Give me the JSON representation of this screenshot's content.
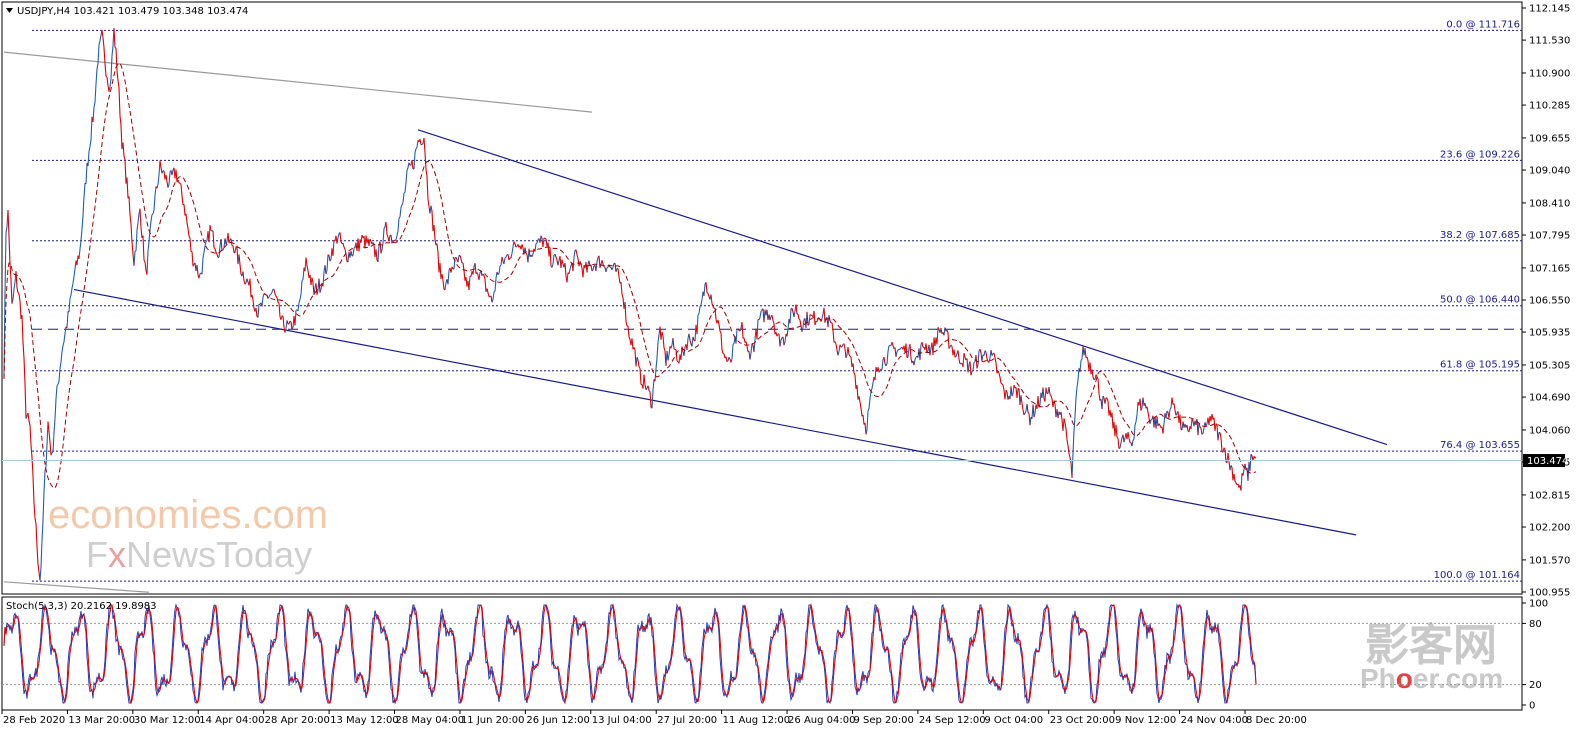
{
  "chart_data": {
    "type": "line",
    "symbol_header": "USDJPY,H4  103.421 103.479 103.348 103.474",
    "price_axis": {
      "ticks": [
        "112.145",
        "111.530",
        "110.900",
        "110.285",
        "109.655",
        "109.040",
        "108.410",
        "107.795",
        "107.165",
        "106.550",
        "105.935",
        "105.305",
        "104.690",
        "104.060",
        "103.445",
        "102.815",
        "102.200",
        "101.570",
        "100.955"
      ],
      "range": [
        100.955,
        112.145
      ],
      "current_price": "103.474",
      "current_value": 103.474
    },
    "x_labels": [
      "28 Feb 2020",
      "13 Mar 20:00",
      "30 Mar 12:00",
      "14 Apr 04:00",
      "28 Apr 20:00",
      "13 May 12:00",
      "28 May 04:00",
      "11 Jun 20:00",
      "26 Jun 12:00",
      "13 Jul 04:00",
      "27 Jul 20:00",
      "11 Aug 12:00",
      "26 Aug 04:00",
      "9 Sep 20:00",
      "24 Sep 12:00",
      "9 Oct 04:00",
      "23 Oct 20:00",
      "9 Nov 12:00",
      "24 Nov 04:00",
      "8 Dec 20:00"
    ],
    "fib_levels": [
      {
        "label": "0.0 @ 111.716",
        "value": 111.716
      },
      {
        "label": "23.6 @ 109.226",
        "value": 109.226
      },
      {
        "label": "38.2 @ 107.685",
        "value": 107.685
      },
      {
        "label": "50.0 @ 106.440",
        "value": 106.44
      },
      {
        "label": "61.8 @ 105.195",
        "value": 105.195
      },
      {
        "label": "76.4 @ 103.655",
        "value": 103.655
      },
      {
        "label": "100.0 @ 101.164",
        "value": 101.164
      }
    ],
    "dashed_level": 105.99,
    "price_anchors": [
      [
        0,
        105.2
      ],
      [
        2,
        107.9
      ],
      [
        4,
        108.2
      ],
      [
        6,
        107.3
      ],
      [
        8,
        106.4
      ],
      [
        12,
        107.0
      ],
      [
        18,
        106.2
      ],
      [
        22,
        104.4
      ],
      [
        26,
        104.1
      ],
      [
        30,
        102.7
      ],
      [
        34,
        101.6
      ],
      [
        36,
        101.2
      ],
      [
        38,
        101.8
      ],
      [
        40,
        102.8
      ],
      [
        44,
        104.2
      ],
      [
        48,
        103.5
      ],
      [
        52,
        104.6
      ],
      [
        58,
        105.6
      ],
      [
        64,
        106.2
      ],
      [
        70,
        107.0
      ],
      [
        76,
        107.5
      ],
      [
        82,
        108.9
      ],
      [
        86,
        109.6
      ],
      [
        90,
        110.2
      ],
      [
        94,
        111.2
      ],
      [
        98,
        111.6
      ],
      [
        102,
        111.0
      ],
      [
        106,
        110.6
      ],
      [
        110,
        111.7
      ],
      [
        114,
        110.8
      ],
      [
        118,
        109.6
      ],
      [
        124,
        108.6
      ],
      [
        130,
        107.3
      ],
      [
        136,
        108.3
      ],
      [
        142,
        107.0
      ],
      [
        148,
        108.1
      ],
      [
        156,
        109.1
      ],
      [
        164,
        108.8
      ],
      [
        172,
        109.0
      ],
      [
        180,
        108.4
      ],
      [
        188,
        107.4
      ],
      [
        196,
        107.0
      ],
      [
        206,
        107.9
      ],
      [
        214,
        107.5
      ],
      [
        222,
        107.7
      ],
      [
        230,
        107.6
      ],
      [
        238,
        107.1
      ],
      [
        246,
        106.8
      ],
      [
        254,
        106.3
      ],
      [
        262,
        106.6
      ],
      [
        270,
        106.7
      ],
      [
        278,
        106.1
      ],
      [
        286,
        106.0
      ],
      [
        294,
        106.3
      ],
      [
        302,
        107.3
      ],
      [
        310,
        106.7
      ],
      [
        318,
        106.9
      ],
      [
        326,
        107.4
      ],
      [
        334,
        107.8
      ],
      [
        342,
        107.4
      ],
      [
        350,
        107.5
      ],
      [
        358,
        107.7
      ],
      [
        366,
        107.6
      ],
      [
        374,
        107.4
      ],
      [
        382,
        107.9
      ],
      [
        390,
        107.7
      ],
      [
        398,
        108.3
      ],
      [
        404,
        109.0
      ],
      [
        410,
        109.2
      ],
      [
        414,
        109.6
      ],
      [
        420,
        109.7
      ],
      [
        424,
        108.6
      ],
      [
        430,
        107.9
      ],
      [
        436,
        107.1
      ],
      [
        442,
        106.8
      ],
      [
        448,
        107.2
      ],
      [
        456,
        107.3
      ],
      [
        464,
        106.8
      ],
      [
        472,
        107.2
      ],
      [
        480,
        106.9
      ],
      [
        488,
        106.5
      ],
      [
        494,
        107.1
      ],
      [
        500,
        107.3
      ],
      [
        508,
        107.5
      ],
      [
        516,
        107.7
      ],
      [
        524,
        107.4
      ],
      [
        532,
        107.6
      ],
      [
        540,
        107.7
      ],
      [
        548,
        107.3
      ],
      [
        556,
        107.3
      ],
      [
        564,
        107.0
      ],
      [
        572,
        107.4
      ],
      [
        580,
        107.1
      ],
      [
        588,
        107.2
      ],
      [
        596,
        107.3
      ],
      [
        604,
        107.2
      ],
      [
        612,
        107.1
      ],
      [
        618,
        106.8
      ],
      [
        624,
        106.0
      ],
      [
        630,
        105.6
      ],
      [
        636,
        105.1
      ],
      [
        642,
        104.9
      ],
      [
        648,
        104.6
      ],
      [
        652,
        105.3
      ],
      [
        656,
        106.0
      ],
      [
        662,
        105.4
      ],
      [
        668,
        105.7
      ],
      [
        676,
        105.4
      ],
      [
        684,
        105.8
      ],
      [
        690,
        105.8
      ],
      [
        696,
        106.3
      ],
      [
        702,
        106.9
      ],
      [
        708,
        106.6
      ],
      [
        714,
        106.1
      ],
      [
        720,
        105.5
      ],
      [
        726,
        105.3
      ],
      [
        732,
        105.8
      ],
      [
        738,
        106.0
      ],
      [
        744,
        105.5
      ],
      [
        750,
        105.7
      ],
      [
        756,
        106.2
      ],
      [
        762,
        106.3
      ],
      [
        768,
        106.3
      ],
      [
        774,
        105.8
      ],
      [
        780,
        105.8
      ],
      [
        786,
        106.2
      ],
      [
        792,
        106.4
      ],
      [
        798,
        106.1
      ],
      [
        804,
        106.2
      ],
      [
        810,
        106.2
      ],
      [
        818,
        106.3
      ],
      [
        826,
        106.1
      ],
      [
        834,
        105.6
      ],
      [
        842,
        105.6
      ],
      [
        850,
        105.2
      ],
      [
        856,
        104.6
      ],
      [
        862,
        104.1
      ],
      [
        868,
        104.8
      ],
      [
        874,
        105.3
      ],
      [
        880,
        105.4
      ],
      [
        888,
        105.6
      ],
      [
        896,
        105.6
      ],
      [
        904,
        105.6
      ],
      [
        912,
        105.4
      ],
      [
        920,
        105.7
      ],
      [
        928,
        105.6
      ],
      [
        936,
        106.0
      ],
      [
        944,
        105.8
      ],
      [
        952,
        105.5
      ],
      [
        960,
        105.4
      ],
      [
        968,
        105.2
      ],
      [
        976,
        105.5
      ],
      [
        984,
        105.5
      ],
      [
        990,
        105.4
      ],
      [
        996,
        105.0
      ],
      [
        1002,
        104.7
      ],
      [
        1008,
        104.8
      ],
      [
        1014,
        104.8
      ],
      [
        1020,
        104.5
      ],
      [
        1026,
        104.3
      ],
      [
        1032,
        104.5
      ],
      [
        1038,
        104.7
      ],
      [
        1044,
        104.8
      ],
      [
        1050,
        104.5
      ],
      [
        1056,
        104.4
      ],
      [
        1062,
        104.0
      ],
      [
        1068,
        103.2
      ],
      [
        1072,
        104.6
      ],
      [
        1076,
        105.3
      ],
      [
        1080,
        105.6
      ],
      [
        1086,
        105.3
      ],
      [
        1092,
        105.1
      ],
      [
        1098,
        104.6
      ],
      [
        1104,
        104.5
      ],
      [
        1110,
        104.1
      ],
      [
        1116,
        103.8
      ],
      [
        1122,
        103.9
      ],
      [
        1128,
        103.8
      ],
      [
        1134,
        104.5
      ],
      [
        1140,
        104.6
      ],
      [
        1146,
        104.3
      ],
      [
        1152,
        104.2
      ],
      [
        1158,
        104.1
      ],
      [
        1164,
        104.4
      ],
      [
        1170,
        104.6
      ],
      [
        1176,
        104.2
      ],
      [
        1182,
        104.0
      ],
      [
        1188,
        104.2
      ],
      [
        1194,
        104.1
      ],
      [
        1200,
        104.0
      ],
      [
        1206,
        104.3
      ],
      [
        1212,
        104.1
      ],
      [
        1218,
        103.8
      ],
      [
        1224,
        103.5
      ],
      [
        1230,
        103.2
      ],
      [
        1236,
        102.9
      ],
      [
        1240,
        103.3
      ],
      [
        1244,
        103.2
      ],
      [
        1248,
        103.6
      ],
      [
        1252,
        103.47
      ]
    ],
    "stoch": {
      "label": "Stoch(5,3,3) 20.2162 19.8983",
      "k": 20.2162,
      "d": 19.8983,
      "range": [
        0,
        100
      ],
      "levels": [
        20,
        80
      ],
      "axis_ticks": [
        "100",
        "80",
        "20",
        "0"
      ]
    }
  },
  "watermarks": {
    "brand1": "economies.com",
    "brand2_part1": "F",
    "brand2_x": "x",
    "brand2_part2": "NewsToday",
    "brand3": "影客网",
    "brand4_part1": "Ph",
    "brand4_o": "o",
    "brand4_part2": "er.com"
  },
  "colors": {
    "price_up": "#1f5fb5",
    "price_down": "#e00000",
    "moving_average": "#a00000",
    "trendline": "#1a1a8c",
    "fib": "#1a1a8c",
    "stoch_k": "#1f3fbf",
    "stoch_d": "#e00000",
    "brand_orange": "#f3c9a9",
    "brand_red": "#e84040"
  }
}
